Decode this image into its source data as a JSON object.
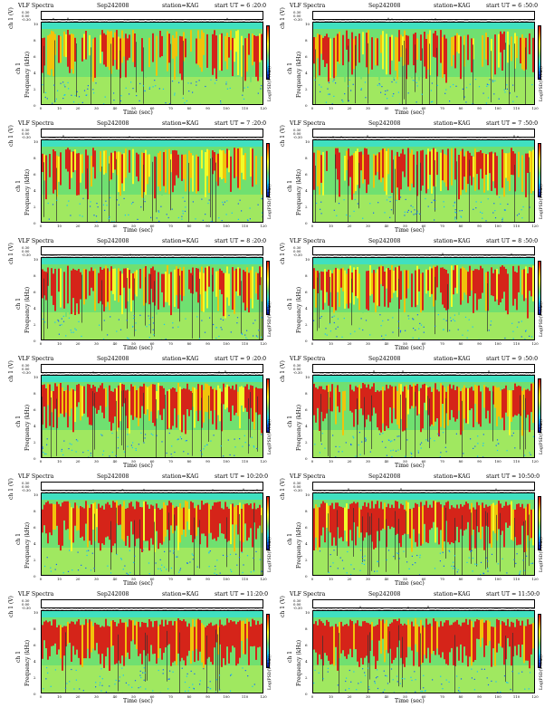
{
  "figure": {
    "product": "VLF Spectra",
    "date": "Sep242008",
    "station": "station=KAG",
    "channel_label": "ch 1 (V)",
    "freq_label": "Frequency (kHz)",
    "time_label": "Time (sec)",
    "colorbar_label": "Log(PSD(V²/Hz))",
    "ts_ticks": [
      "0.30",
      "0.00",
      "-0.30"
    ],
    "freq_ticks": [
      "0",
      "2",
      "4",
      "6",
      "8",
      "10"
    ],
    "time_ticks": [
      "0",
      "10",
      "20",
      "30",
      "40",
      "50",
      "60",
      "70",
      "80",
      "90",
      "100",
      "110",
      "120"
    ],
    "colorbar_scale": [
      "#1010a0",
      "#1060ff",
      "#10c0ff",
      "#40e0c0",
      "#70e070",
      "#c8f040",
      "#ffff20",
      "#ffc000",
      "#ff6000",
      "#e01010"
    ]
  },
  "chart_data": [
    {
      "type": "heatmap",
      "title": "VLF Spectra",
      "start_ut": "start UT = 6 :20:0",
      "xlabel": "Time (sec)",
      "ylabel": "Frequency (kHz)",
      "xlim": [
        0,
        120
      ],
      "ylim": [
        0,
        10
      ],
      "colorbar_label": "Log(PSD(V²/Hz))"
    },
    {
      "type": "heatmap",
      "title": "VLF Spectra",
      "start_ut": "start UT = 6 :50:0",
      "xlabel": "Time (sec)",
      "ylabel": "Frequency (kHz)",
      "xlim": [
        0,
        120
      ],
      "ylim": [
        0,
        10
      ],
      "colorbar_label": "Log(PSD(V²/Hz))"
    },
    {
      "type": "heatmap",
      "title": "VLF Spectra",
      "start_ut": "start UT = 7 :20:0",
      "xlabel": "Time (sec)",
      "ylabel": "Frequency (kHz)",
      "xlim": [
        0,
        120
      ],
      "ylim": [
        0,
        10
      ],
      "colorbar_label": "Log(PSD(V²/Hz))"
    },
    {
      "type": "heatmap",
      "title": "VLF Spectra",
      "start_ut": "start UT = 7 :50:0",
      "xlabel": "Time (sec)",
      "ylabel": "Frequency (kHz)",
      "xlim": [
        0,
        120
      ],
      "ylim": [
        0,
        10
      ],
      "colorbar_label": "Log(PSD(V²/Hz))"
    },
    {
      "type": "heatmap",
      "title": "VLF Spectra",
      "start_ut": "start UT = 8 :20:0",
      "xlabel": "Time (sec)",
      "ylabel": "Frequency (kHz)",
      "xlim": [
        0,
        120
      ],
      "ylim": [
        0,
        10
      ],
      "colorbar_label": "Log(PSD(V²/Hz))"
    },
    {
      "type": "heatmap",
      "title": "VLF Spectra",
      "start_ut": "start UT = 8 :50:0",
      "xlabel": "Time (sec)",
      "ylabel": "Frequency (kHz)",
      "xlim": [
        0,
        120
      ],
      "ylim": [
        0,
        10
      ],
      "colorbar_label": "Log(PSD(V²/Hz))"
    },
    {
      "type": "heatmap",
      "title": "VLF Spectra",
      "start_ut": "start UT = 9 :20:0",
      "xlabel": "Time (sec)",
      "ylabel": "Frequency (kHz)",
      "xlim": [
        0,
        120
      ],
      "ylim": [
        0,
        10
      ],
      "colorbar_label": "Log(PSD(V²/Hz))"
    },
    {
      "type": "heatmap",
      "title": "VLF Spectra",
      "start_ut": "start UT = 9 :50:0",
      "xlabel": "Time (sec)",
      "ylabel": "Frequency (kHz)",
      "xlim": [
        0,
        120
      ],
      "ylim": [
        0,
        10
      ],
      "colorbar_label": "Log(PSD(V²/Hz))"
    },
    {
      "type": "heatmap",
      "title": "VLF Spectra",
      "start_ut": "start UT = 10:20:0",
      "xlabel": "Time (sec)",
      "ylabel": "Frequency (kHz)",
      "xlim": [
        0,
        120
      ],
      "ylim": [
        0,
        10
      ],
      "colorbar_label": "Log(PSD(V²/Hz))"
    },
    {
      "type": "heatmap",
      "title": "VLF Spectra",
      "start_ut": "start UT = 10:50:0",
      "xlabel": "Time (sec)",
      "ylabel": "Frequency (kHz)",
      "xlim": [
        0,
        120
      ],
      "ylim": [
        0,
        10
      ],
      "colorbar_label": "Log(PSD(V²/Hz))"
    },
    {
      "type": "heatmap",
      "title": "VLF Spectra",
      "start_ut": "start UT = 11:20:0",
      "xlabel": "Time (sec)",
      "ylabel": "Frequency (kHz)",
      "xlim": [
        0,
        120
      ],
      "ylim": [
        0,
        10
      ],
      "colorbar_label": "Log(PSD(V²/Hz))"
    },
    {
      "type": "heatmap",
      "title": "VLF Spectra",
      "start_ut": "start UT = 11:50:0",
      "xlabel": "Time (sec)",
      "ylabel": "Frequency (kHz)",
      "xlim": [
        0,
        120
      ],
      "ylim": [
        0,
        10
      ],
      "colorbar_label": "Log(PSD(V²/Hz))"
    }
  ]
}
